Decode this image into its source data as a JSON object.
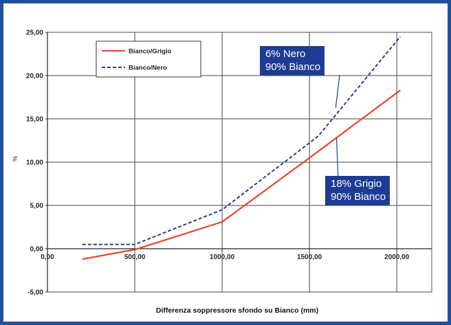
{
  "colors": {
    "frame": "#1f4f9e",
    "grid": "#444444",
    "series_red": "#e8432e",
    "series_blue": "#2e3b8c",
    "annotation_bg": "#1f3c94",
    "annotation_text": "#ffffff"
  },
  "chart_data": {
    "type": "line",
    "title": "",
    "xlabel": "Differenza soppressore sfondo su Bianco (mm)",
    "ylabel": "%",
    "xlim": [
      0,
      2200
    ],
    "ylim": [
      -5,
      25
    ],
    "x_ticks": [
      0,
      500,
      1000,
      1500,
      2000
    ],
    "x_tick_labels": [
      "0,00",
      "500,00",
      "1000,00",
      "1500,00",
      "2000,00"
    ],
    "y_ticks": [
      -5,
      0,
      5,
      10,
      15,
      20,
      25
    ],
    "y_tick_labels": [
      "-5,00",
      "0,00",
      "5,00",
      "10,00",
      "15,00",
      "20,00",
      "25,00"
    ],
    "grid": true,
    "legend_position": "top-left",
    "series": [
      {
        "name": "Bianco/Grigio",
        "style": "solid",
        "x": [
          200,
          500,
          1000,
          1500,
          2020
        ],
        "y": [
          -1.2,
          -0.1,
          3.1,
          10.5,
          18.3
        ]
      },
      {
        "name": "Bianco/Nero",
        "style": "dashed",
        "x": [
          200,
          500,
          1000,
          1550,
          2020
        ],
        "y": [
          0.5,
          0.5,
          4.5,
          13.0,
          24.5
        ]
      }
    ],
    "annotations": [
      {
        "lines": [
          "6% Nero",
          "90% Bianco"
        ],
        "points_to_series": "Bianco/Nero",
        "x": 1650,
        "y": 16.3
      },
      {
        "lines": [
          "18% Grigio",
          "90% Bianco"
        ],
        "points_to_series": "Bianco/Grigio",
        "x": 1655,
        "y": 12.8
      }
    ]
  }
}
